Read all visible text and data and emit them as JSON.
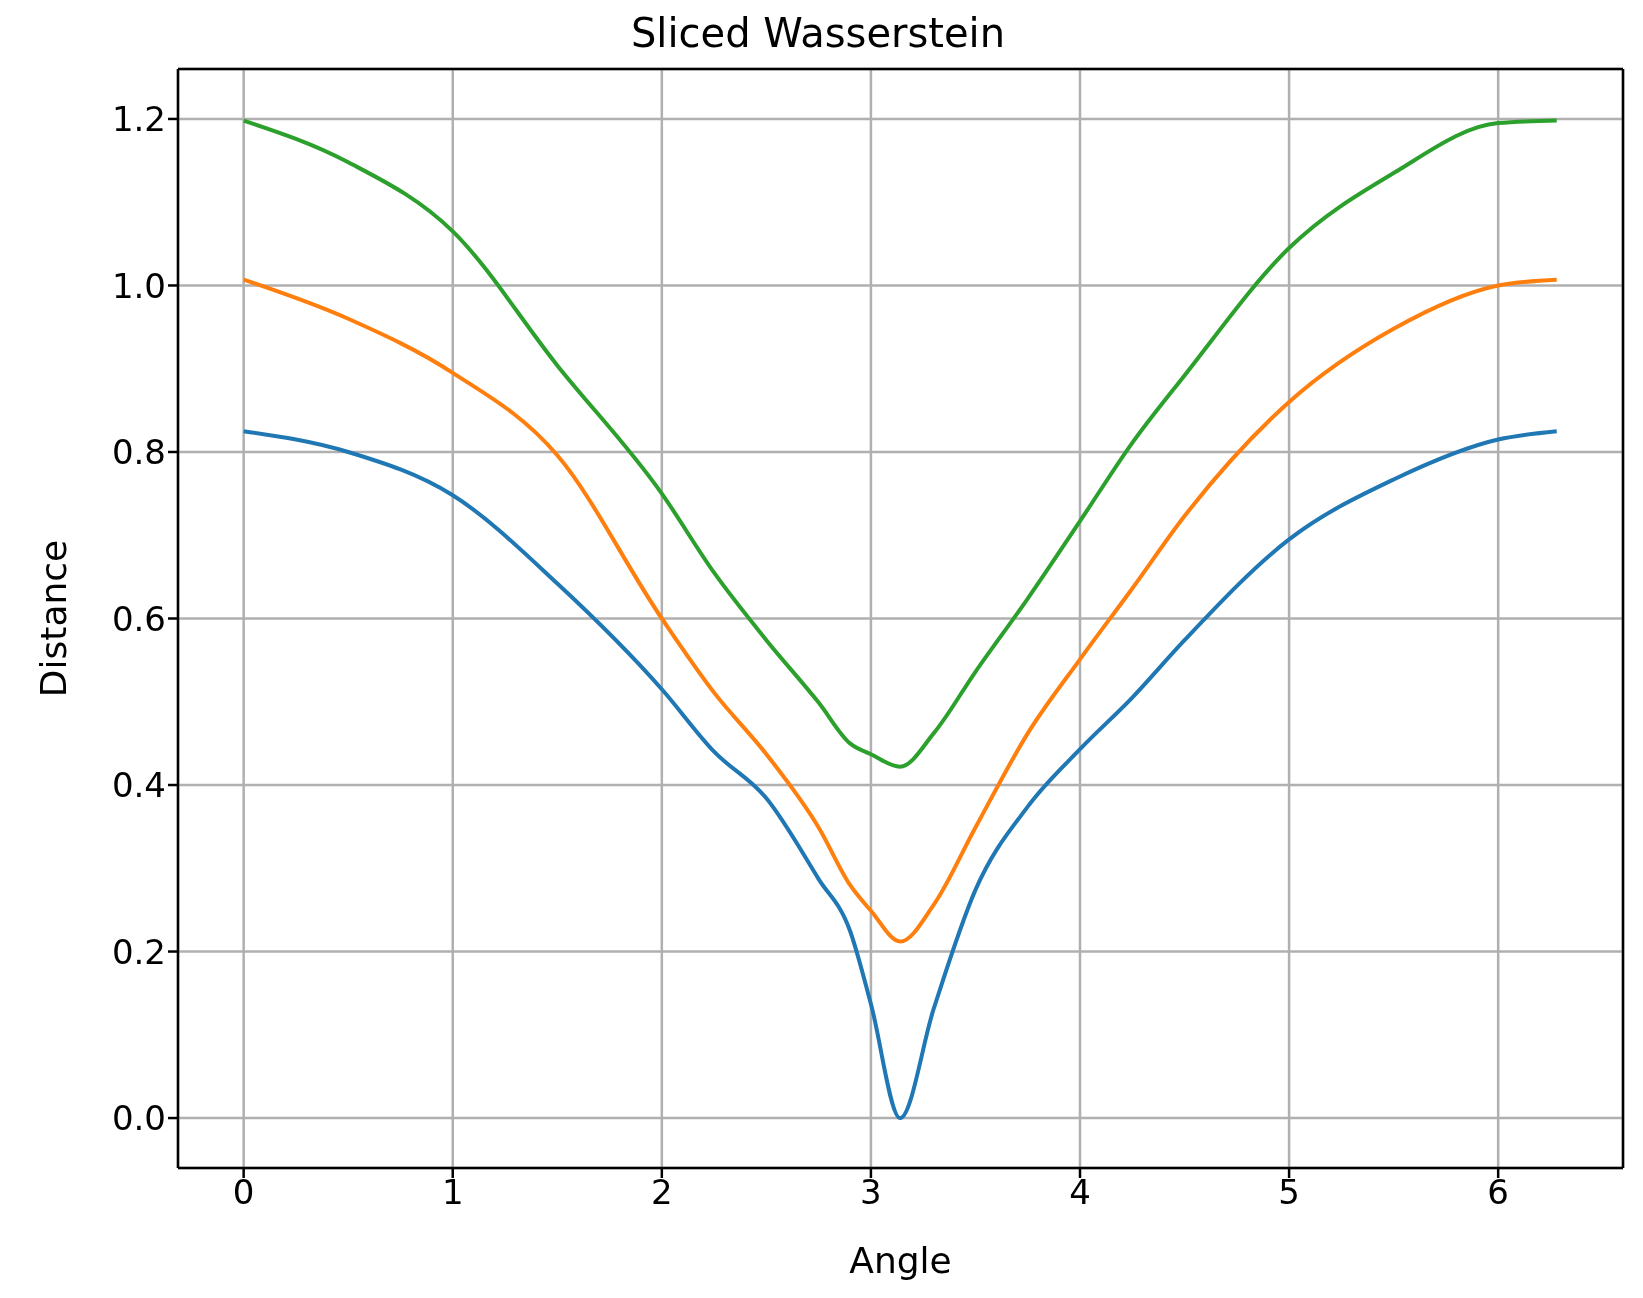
{
  "chart_data": {
    "type": "line",
    "title": "Sliced Wasserstein",
    "xlabel": "Angle",
    "ylabel": "Distance",
    "x": [
      0,
      0.5,
      1,
      1.5,
      2,
      2.25,
      2.5,
      2.75,
      2.9,
      3.0,
      3.14,
      3.3,
      3.5,
      3.75,
      4.0,
      4.25,
      4.5,
      5,
      5.5,
      6,
      6.28
    ],
    "series": [
      {
        "color": "#1f77b4",
        "values": [
          0.825,
          0.8,
          0.748,
          0.642,
          0.515,
          0.44,
          0.384,
          0.287,
          0.225,
          0.137,
          0.0,
          0.131,
          0.274,
          0.374,
          0.443,
          0.505,
          0.574,
          0.695,
          0.767,
          0.815,
          0.825
        ]
      },
      {
        "color": "#ff7f0e",
        "values": [
          1.007,
          0.96,
          0.895,
          0.796,
          0.6,
          0.511,
          0.437,
          0.349,
          0.28,
          0.249,
          0.212,
          0.256,
          0.349,
          0.462,
          0.551,
          0.636,
          0.723,
          0.86,
          0.948,
          1.0,
          1.007
        ]
      },
      {
        "color": "#2ca02c",
        "values": [
          1.198,
          1.148,
          1.065,
          0.904,
          0.75,
          0.655,
          0.574,
          0.499,
          0.45,
          0.437,
          0.422,
          0.462,
          0.536,
          0.624,
          0.717,
          0.811,
          0.892,
          1.045,
          1.135,
          1.195,
          1.198
        ]
      }
    ],
    "xlim": [
      -0.314,
      6.597
    ],
    "ylim": [
      -0.06,
      1.26
    ],
    "xticks": [
      0,
      1,
      2,
      3,
      4,
      5,
      6
    ],
    "yticks": [
      {
        "value": 0,
        "label": "0.0"
      },
      {
        "value": 0.2,
        "label": "0.2"
      },
      {
        "value": 0.4,
        "label": "0.4"
      },
      {
        "value": 0.6,
        "label": "0.6"
      },
      {
        "value": 0.8,
        "label": "0.8"
      },
      {
        "value": 1,
        "label": "1.0"
      },
      {
        "value": 1.2,
        "label": "1.2"
      }
    ],
    "grid": true
  }
}
